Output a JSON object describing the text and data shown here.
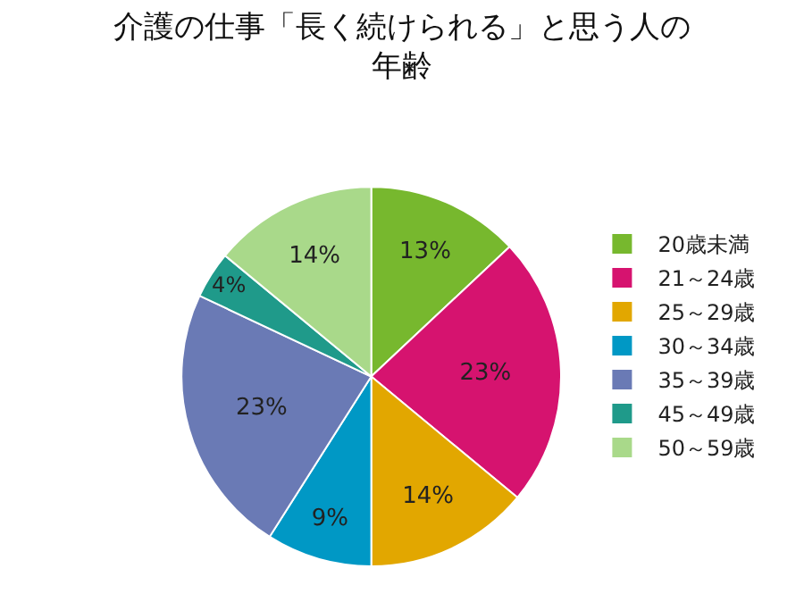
{
  "chart_data": {
    "type": "pie",
    "title": "介護の仕事「長く続けられる」と思う人の年齢",
    "categories": [
      "20歳未満",
      "21～24歳",
      "25～29歳",
      "30～34歳",
      "35～39歳",
      "45～49歳",
      "50～59歳"
    ],
    "values": [
      13,
      23,
      14,
      9,
      23,
      4,
      14
    ],
    "colors": [
      "#77b82e",
      "#d6136f",
      "#e2a700",
      "#0098c5",
      "#6a7ab5",
      "#1f9a8a",
      "#a9d98a"
    ],
    "value_labels": [
      "13%",
      "23%",
      "14%",
      "9%",
      "23%",
      "4%",
      "14%"
    ],
    "legend": "right"
  }
}
